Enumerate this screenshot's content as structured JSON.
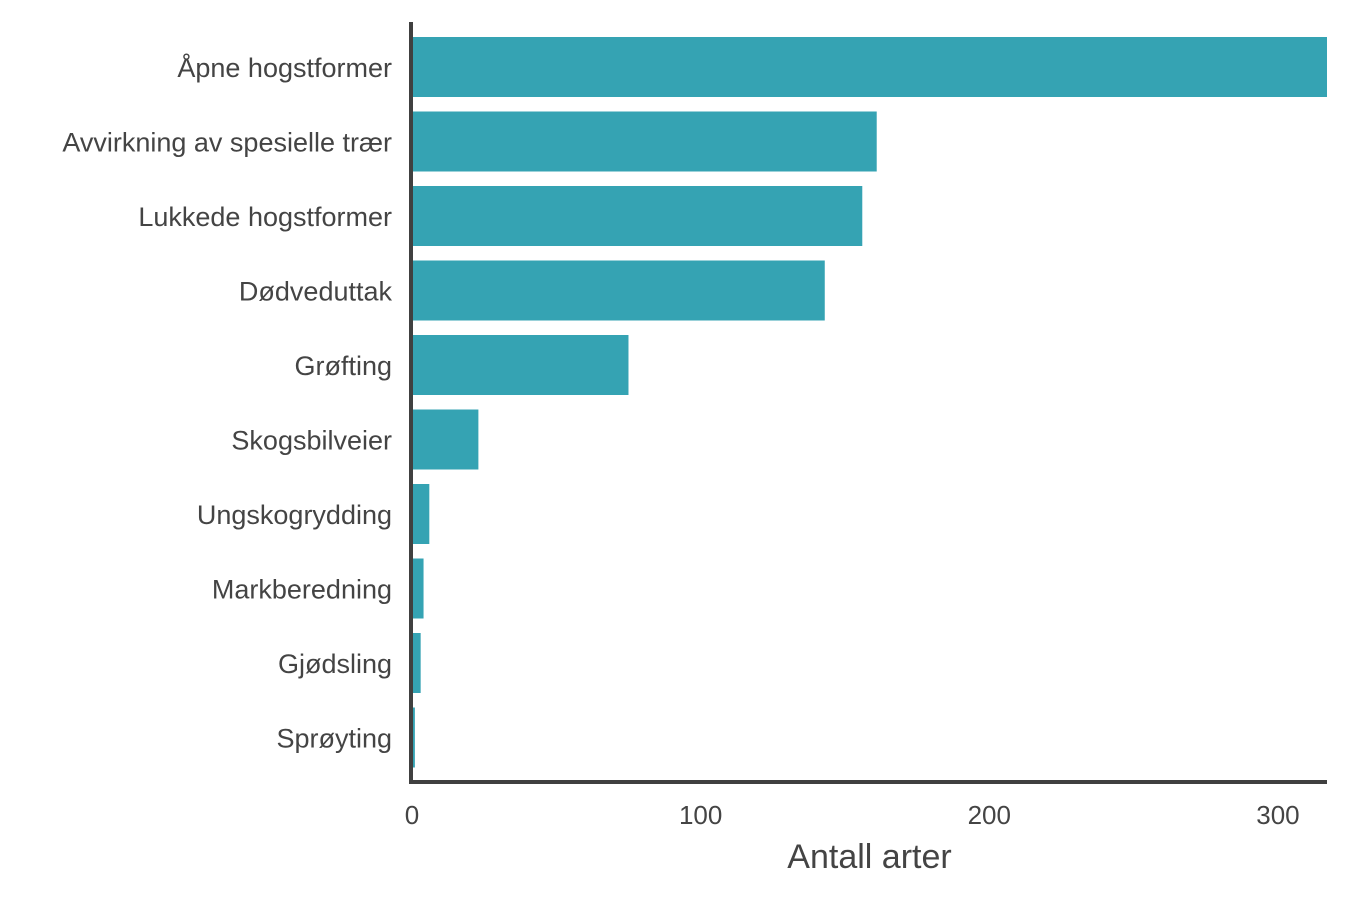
{
  "chart_data": {
    "type": "bar",
    "orientation": "horizontal",
    "categories": [
      "Åpne hogstformer",
      "Avvirkning av spesielle trær",
      "Lukkede hogstformer",
      "Dødveduttak",
      "Grøfting",
      "Skogsbilveier",
      "Ungskogrydding",
      "Markberedning",
      "Gjødsling",
      "Sprøyting"
    ],
    "values": [
      317,
      161,
      156,
      143,
      75,
      23,
      6,
      4,
      3,
      1
    ],
    "xlabel": "Antall arter",
    "ylabel": "",
    "xlim": [
      0,
      317
    ],
    "xticks": [
      0,
      100,
      200,
      300
    ],
    "grid": false,
    "legend": "none",
    "bar_color": "#35a3b3",
    "axis_color": "#404040"
  }
}
